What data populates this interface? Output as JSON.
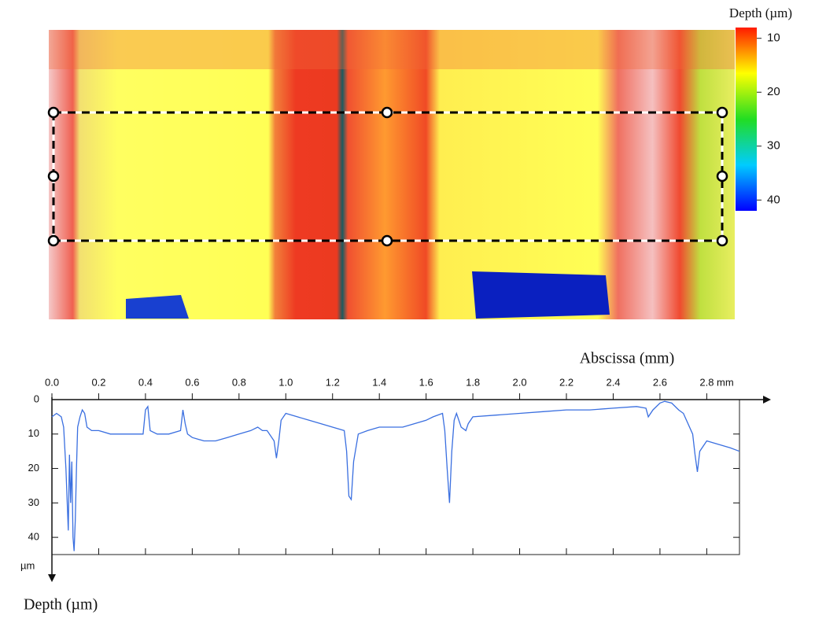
{
  "chart_data": [
    {
      "type": "heatmap",
      "title": "Depth (µm)",
      "ylim": [
        8,
        42
      ],
      "yticks": [
        10,
        20,
        30,
        40
      ],
      "colors": [
        "#ff1a00",
        "#ffff00",
        "#22dd22",
        "#00ccff",
        "#0000ff"
      ]
    },
    {
      "type": "line",
      "xlabel": "Abscissa (mm)",
      "ylabel": "Depth (µm)",
      "y_unit": "µm",
      "y_inverted": true,
      "xlim": [
        0,
        2.94
      ],
      "ylim": [
        0,
        45
      ],
      "xticks": [
        {
          "value": 0,
          "label": "0.0"
        },
        0.2,
        0.4,
        0.6,
        0.8,
        {
          "value": 1,
          "label": "1.0"
        },
        1.2,
        1.4,
        1.6,
        1.8,
        {
          "value": 2,
          "label": "2.0"
        },
        2.2,
        2.4,
        2.6,
        {
          "value": 2.8,
          "label": "2.8 mm"
        }
      ],
      "yticks": [
        0,
        10,
        20,
        30,
        40
      ],
      "color": "#3a6fe0",
      "x": [
        0,
        0.02,
        0.04,
        0.05,
        0.06,
        0.07,
        0.075,
        0.08,
        0.085,
        0.09,
        0.095,
        0.1,
        0.105,
        0.11,
        0.12,
        0.13,
        0.14,
        0.15,
        0.17,
        0.2,
        0.25,
        0.3,
        0.35,
        0.39,
        0.4,
        0.41,
        0.42,
        0.45,
        0.5,
        0.55,
        0.56,
        0.57,
        0.58,
        0.6,
        0.65,
        0.7,
        0.75,
        0.8,
        0.85,
        0.88,
        0.9,
        0.92,
        0.95,
        0.96,
        0.97,
        0.98,
        1,
        1.05,
        1.1,
        1.15,
        1.2,
        1.25,
        1.26,
        1.27,
        1.28,
        1.29,
        1.31,
        1.35,
        1.4,
        1.5,
        1.55,
        1.6,
        1.63,
        1.67,
        1.68,
        1.69,
        1.7,
        1.71,
        1.72,
        1.73,
        1.75,
        1.77,
        1.78,
        1.8,
        1.9,
        2,
        2.1,
        2.2,
        2.3,
        2.4,
        2.5,
        2.54,
        2.55,
        2.57,
        2.6,
        2.62,
        2.65,
        2.68,
        2.7,
        2.74,
        2.75,
        2.76,
        2.77,
        2.8,
        2.85,
        2.9,
        2.94
      ],
      "values": [
        5,
        4,
        5,
        8,
        20,
        38,
        16,
        30,
        18,
        40,
        44,
        35,
        20,
        8,
        5,
        3,
        4,
        8,
        9,
        9,
        10,
        10,
        10,
        10,
        3,
        2,
        9,
        10,
        10,
        9,
        3,
        7,
        10,
        11,
        12,
        12,
        11,
        10,
        9,
        8,
        9,
        9,
        12,
        17,
        12,
        6,
        4,
        5,
        6,
        7,
        8,
        9,
        15,
        28,
        29,
        18,
        10,
        9,
        8,
        8,
        7,
        6,
        5,
        4,
        9,
        20,
        30,
        15,
        6,
        4,
        8,
        9,
        7,
        5,
        4.5,
        4,
        3.5,
        3,
        3,
        2.5,
        2,
        2.5,
        5,
        3,
        1,
        0.5,
        1,
        3,
        4,
        10,
        16,
        21,
        15,
        12,
        13,
        14,
        15
      ]
    }
  ]
}
